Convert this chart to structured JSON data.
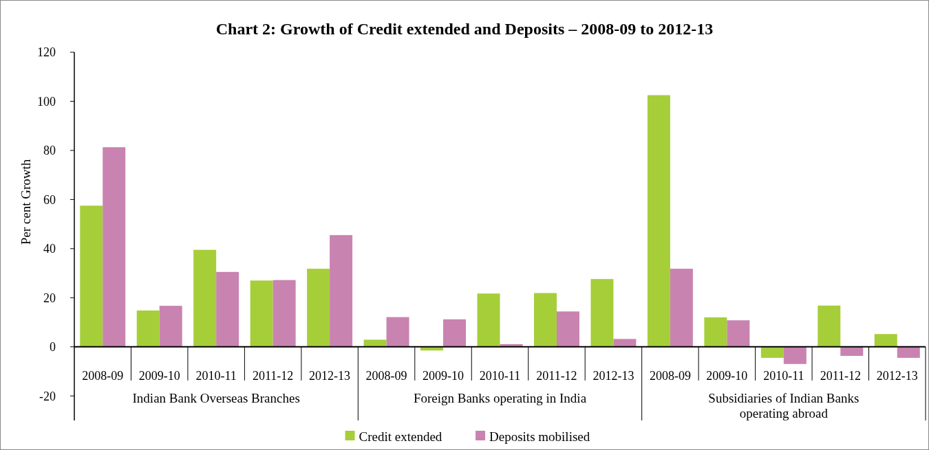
{
  "chart_data": {
    "type": "bar",
    "title": "Chart 2: Growth of Credit extended and Deposits – 2008-09 to 2012-13",
    "ylabel": "Per cent Growth",
    "categories": [
      "2008-09",
      "2009-10",
      "2010-11",
      "2011-12",
      "2012-13",
      "2008-09",
      "2009-10",
      "2010-11",
      "2011-12",
      "2012-13",
      "2008-09",
      "2009-10",
      "2010-11",
      "2011-12",
      "2012-13"
    ],
    "series": [
      {
        "name": "Credit extended",
        "color": "#a6ce39",
        "values": [
          57.5,
          14.8,
          39.5,
          27,
          31.8,
          2.9,
          -1.5,
          21.7,
          21.9,
          27.6,
          102.5,
          12,
          -4.5,
          16.8,
          5.2
        ]
      },
      {
        "name": "Deposits mobilised",
        "color": "#c983b0",
        "values": [
          81.3,
          16.7,
          30.5,
          27.2,
          45.5,
          12.1,
          11.2,
          1.1,
          14.4,
          3.2,
          31.8,
          10.8,
          -7,
          -3.7,
          -4.5
        ]
      }
    ],
    "annotations": [
      "Indian Bank Overseas Branches",
      "Foreign Banks operating in India",
      "Subsidiaries of Indian Banks operating abroad"
    ],
    "ylim": [
      -30,
      120
    ],
    "yticks": [
      -20,
      0,
      20,
      40,
      60,
      80,
      100,
      120
    ],
    "grid": false,
    "legend": "bottom"
  }
}
